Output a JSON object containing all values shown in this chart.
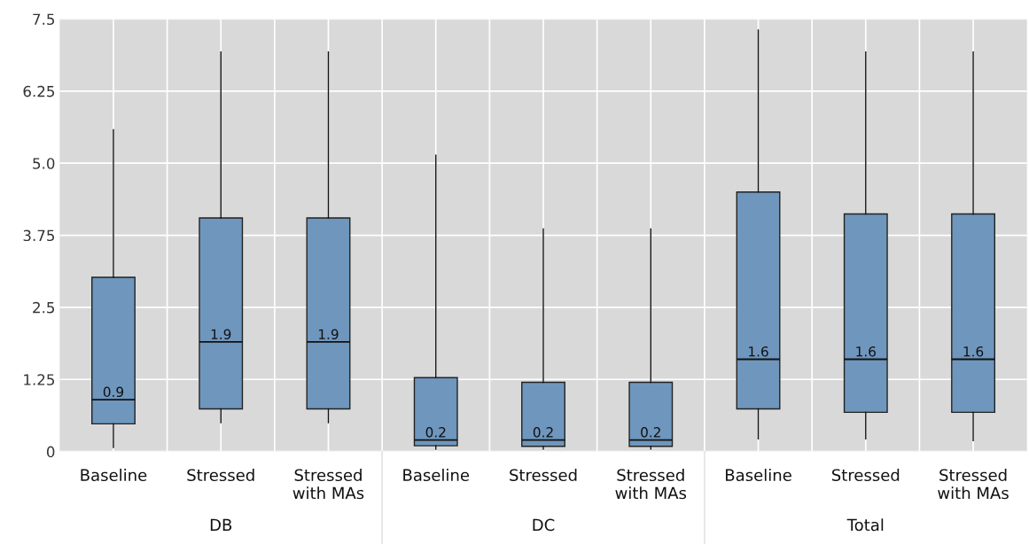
{
  "chart_data": {
    "type": "box",
    "categories": [
      "Baseline",
      "Stressed",
      "Stressed\nwith MAs",
      "Baseline",
      "Stressed",
      "Stressed\nwith MAs",
      "Baseline",
      "Stressed",
      "Stressed\nwith MAs"
    ],
    "boxes": [
      {
        "low": 0.07,
        "q1": 0.48,
        "median": 0.9,
        "q3": 3.02,
        "high": 5.58
      },
      {
        "low": 0.5,
        "q1": 0.74,
        "median": 1.9,
        "q3": 4.05,
        "high": 6.93
      },
      {
        "low": 0.5,
        "q1": 0.74,
        "median": 1.9,
        "q3": 4.05,
        "high": 6.93
      },
      {
        "low": 0.04,
        "q1": 0.1,
        "median": 0.2,
        "q3": 1.28,
        "high": 5.14
      },
      {
        "low": 0.04,
        "q1": 0.09,
        "median": 0.2,
        "q3": 1.2,
        "high": 3.86
      },
      {
        "low": 0.04,
        "q1": 0.09,
        "median": 0.2,
        "q3": 1.2,
        "high": 3.86
      },
      {
        "low": 0.22,
        "q1": 0.74,
        "median": 1.6,
        "q3": 4.5,
        "high": 7.31
      },
      {
        "low": 0.22,
        "q1": 0.68,
        "median": 1.6,
        "q3": 4.12,
        "high": 6.93
      },
      {
        "low": 0.19,
        "q1": 0.68,
        "median": 1.6,
        "q3": 4.12,
        "high": 6.93
      }
    ],
    "color": "#6f96bd",
    "value_labels": [
      "0.9",
      "1.9",
      "1.9",
      "0.2",
      "0.2",
      "0.2",
      "1.6",
      "1.6",
      "1.6"
    ],
    "annotations": [
      "DB",
      "DC",
      "Total"
    ],
    "ylim": [
      0,
      7.5
    ],
    "yticks": [
      0,
      1.25,
      2.5,
      3.75,
      {
        "value": 5,
        "label": "5.0"
      },
      6.25,
      7.5
    ],
    "grid": true
  }
}
